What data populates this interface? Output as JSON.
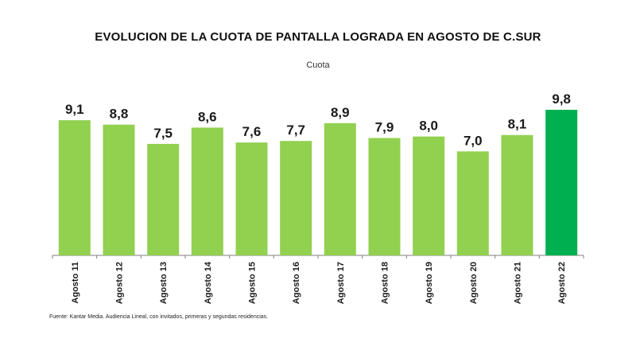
{
  "chart_data": {
    "type": "bar",
    "title": "EVOLUCION DE LA CUOTA DE PANTALLA LOGRADA EN AGOSTO DE C.SUR",
    "subtitle": "Cuota",
    "categories": [
      "Agosto 11",
      "Agosto 12",
      "Agosto 13",
      "Agosto 14",
      "Agosto 15",
      "Agosto 16",
      "Agosto 17",
      "Agosto 18",
      "Agosto 19",
      "Agosto 20",
      "Agosto 21",
      "Agosto 22"
    ],
    "values": [
      9.1,
      8.8,
      7.5,
      8.6,
      7.6,
      7.7,
      8.9,
      7.9,
      8.0,
      7.0,
      8.1,
      9.8
    ],
    "value_labels": [
      "9,1",
      "8,8",
      "7,5",
      "8,6",
      "7,6",
      "7,7",
      "8,9",
      "7,9",
      "8,0",
      "7,0",
      "8,1",
      "9,8"
    ],
    "highlight_index": 11,
    "ylim": [
      0,
      10
    ],
    "grid": false,
    "legend": "none",
    "colors": {
      "bar": "#92D050",
      "highlight": "#00B050",
      "axis": "#808080"
    },
    "xlabel": "",
    "ylabel": ""
  },
  "footnote": "Fuente: Kantar Media. Audiencia Lineal, con invitados, primeras y segundas residencias."
}
